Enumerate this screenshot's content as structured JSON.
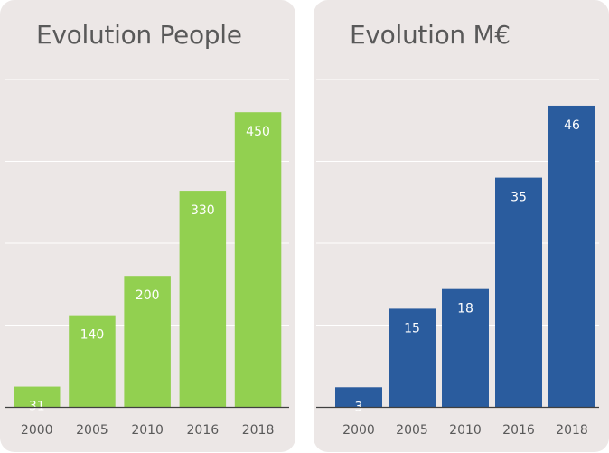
{
  "chart_data": [
    {
      "type": "bar",
      "title": "Evolution People",
      "categories": [
        "2000",
        "2005",
        "2010",
        "2016",
        "2018"
      ],
      "values": [
        31,
        140,
        200,
        330,
        450
      ],
      "data_labels": [
        "31",
        "140",
        "200",
        "330",
        "450"
      ],
      "ylim": [
        0,
        500
      ],
      "grid": true,
      "legend": "none",
      "color": "#92d050"
    },
    {
      "type": "bar",
      "title": "Evolution M€",
      "categories": [
        "2000",
        "2005",
        "2010",
        "2016",
        "2018"
      ],
      "values": [
        3,
        15,
        18,
        35,
        46
      ],
      "data_labels": [
        "3",
        "15",
        "18",
        "35",
        "46"
      ],
      "ylim": [
        0,
        50
      ],
      "grid": true,
      "legend": "none",
      "color": "#2a5c9e"
    }
  ],
  "colors": {
    "card_bg": "#ece7e6",
    "grid": "#ffffff",
    "axis": "#404040",
    "title_text": "#595959",
    "bar_text": "#ffffff"
  }
}
